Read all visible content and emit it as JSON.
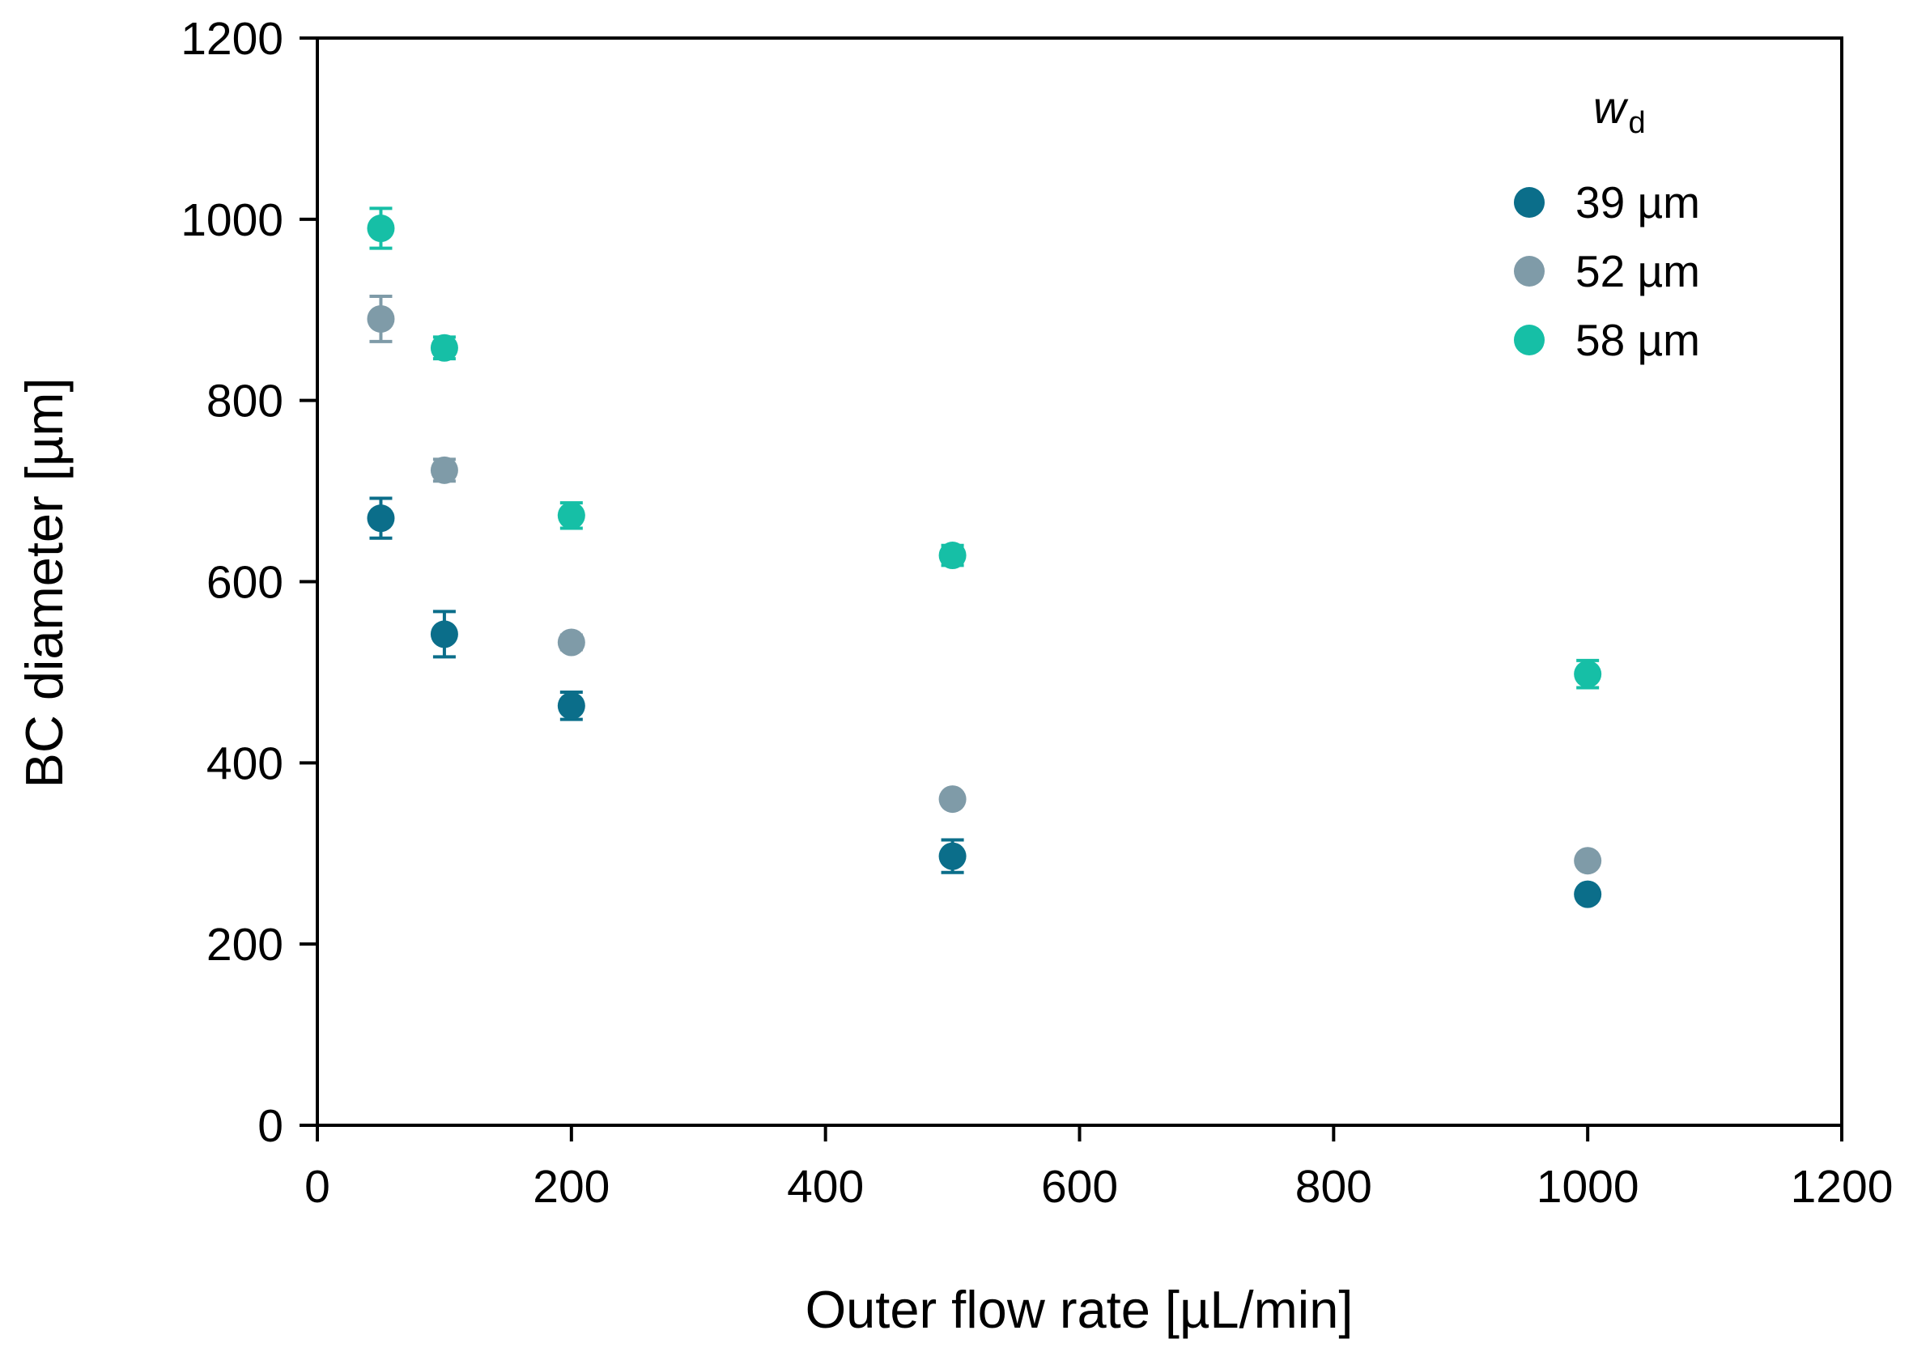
{
  "chart_data": {
    "type": "scatter",
    "title": "",
    "xlabel": "Outer flow rate [µL/min]",
    "ylabel": "BC diameter [µm]",
    "xlim": [
      0,
      1200
    ],
    "ylim": [
      0,
      1200
    ],
    "xticks": [
      0,
      200,
      400,
      600,
      800,
      1000,
      1200
    ],
    "yticks": [
      0,
      200,
      400,
      600,
      800,
      1000,
      1200
    ],
    "grid": false,
    "legend": {
      "title": "w",
      "title_subscript": "d",
      "placement": "top-right"
    },
    "series": [
      {
        "name": "39 µm",
        "color": "#0b6e8a",
        "points": [
          {
            "x": 50,
            "y": 670,
            "err": 22
          },
          {
            "x": 100,
            "y": 542,
            "err": 25
          },
          {
            "x": 200,
            "y": 463,
            "err": 15
          },
          {
            "x": 500,
            "y": 297,
            "err": 18
          },
          {
            "x": 1000,
            "y": 255,
            "err": 6
          }
        ]
      },
      {
        "name": "52 µm",
        "color": "#7f9ba8",
        "points": [
          {
            "x": 50,
            "y": 890,
            "err": 25
          },
          {
            "x": 100,
            "y": 723,
            "err": 12
          },
          {
            "x": 200,
            "y": 533,
            "err": 8
          },
          {
            "x": 500,
            "y": 360,
            "err": 6
          },
          {
            "x": 1000,
            "y": 292,
            "err": 6
          }
        ]
      },
      {
        "name": "58 µm",
        "color": "#16bfa6",
        "points": [
          {
            "x": 50,
            "y": 990,
            "err": 22
          },
          {
            "x": 100,
            "y": 858,
            "err": 12
          },
          {
            "x": 200,
            "y": 673,
            "err": 14
          },
          {
            "x": 500,
            "y": 629,
            "err": 11
          },
          {
            "x": 1000,
            "y": 498,
            "err": 15
          }
        ]
      }
    ]
  }
}
